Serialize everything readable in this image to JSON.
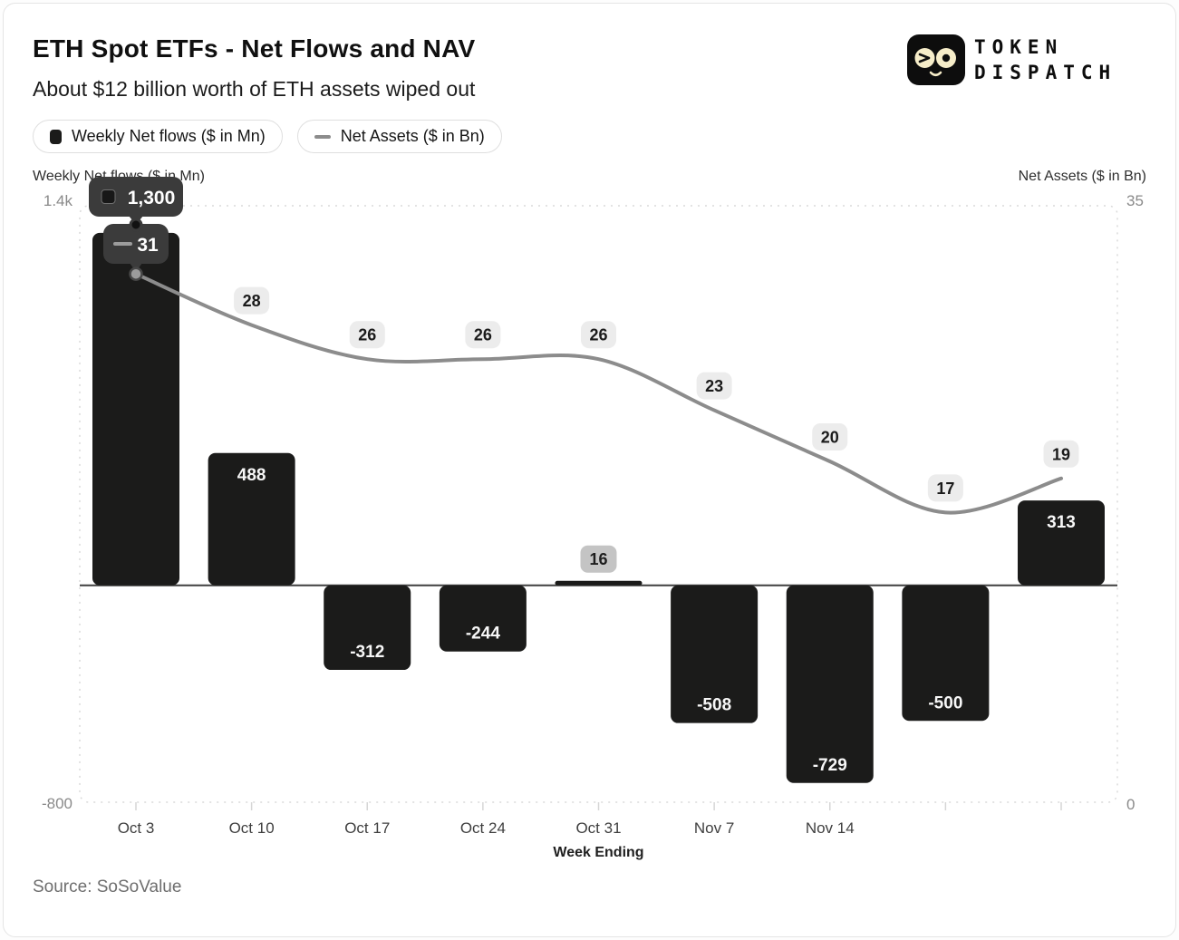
{
  "card": {
    "title": "ETH Spot ETFs - Net Flows and NAV",
    "subtitle": "About $12 billion worth of ETH assets wiped out",
    "source": "Source: SoSoValue"
  },
  "logo": {
    "line1": "TOKEN",
    "line2": "DISPATCH"
  },
  "legend": [
    {
      "label": "Weekly Net flows ($ in Mn)",
      "marker": "square",
      "color": "#1b1b1a"
    },
    {
      "label": "Net Assets ($ in Bn)",
      "marker": "dash",
      "color": "#8c8c8c"
    }
  ],
  "chart_data": {
    "type": "combo",
    "categories": [
      "Oct 3",
      "Oct 10",
      "Oct 17",
      "Oct 24",
      "Oct 31",
      "Nov 7",
      "Nov 14",
      "",
      ""
    ],
    "series": [
      {
        "name": "Weekly Net flows ($ in Mn)",
        "type": "bar",
        "values": [
          1300,
          488,
          -312,
          -244,
          16,
          -508,
          -729,
          -500,
          313
        ],
        "labels": [
          "1,300",
          "488",
          "-312",
          "-244",
          "16",
          "-508",
          "-729",
          "-500",
          "313"
        ],
        "color": "#1b1b1a"
      },
      {
        "name": "Net Assets ($ in Bn)",
        "type": "line",
        "values": [
          31,
          28,
          26,
          26,
          26,
          23,
          20,
          17,
          19
        ],
        "labels": [
          "31",
          "28",
          "26",
          "26",
          "26",
          "23",
          "20",
          "17",
          "19"
        ],
        "color": "#8c8c8c"
      }
    ],
    "left_axis": {
      "title": "Weekly Net flows ($ in Mn)",
      "range": [
        -800,
        1400
      ],
      "ticks": [
        {
          "value": 1400,
          "label": "1.4k"
        },
        {
          "value": -800,
          "label": "-800"
        }
      ]
    },
    "right_axis": {
      "title": "Net Assets ($ in Bn)",
      "range": [
        0,
        35
      ],
      "ticks": [
        {
          "value": 35,
          "label": "35"
        },
        {
          "value": 0,
          "label": "0"
        }
      ]
    },
    "xlabel": "Week Ending",
    "tooltip": {
      "index": 0,
      "bar_label": "1,300",
      "line_label": "31"
    },
    "colors": {
      "bar": "#1b1b1a",
      "line": "#8c8c8c",
      "label_pill": "#ececec",
      "small_bar_pill": "#c4c4c4",
      "tooltip_bg": "#3b3b3b",
      "grid_border": "#dadada",
      "zero_line": "#3f3f3f"
    },
    "legend_position": "top-left",
    "grid": "dashed-border-only"
  }
}
